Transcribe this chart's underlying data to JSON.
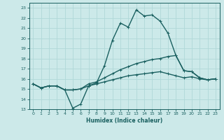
{
  "title": "",
  "xlabel": "Humidex (Indice chaleur)",
  "bg_color": "#cce9e9",
  "line_color": "#1a6060",
  "grid_color": "#b0d8d8",
  "xlim": [
    -0.5,
    23.5
  ],
  "ylim": [
    13,
    23.5
  ],
  "yticks": [
    13,
    14,
    15,
    16,
    17,
    18,
    19,
    20,
    21,
    22,
    23
  ],
  "xticks": [
    0,
    1,
    2,
    3,
    4,
    5,
    6,
    7,
    8,
    9,
    10,
    11,
    12,
    13,
    14,
    15,
    16,
    17,
    18,
    19,
    20,
    21,
    22,
    23
  ],
  "line1_x": [
    0,
    1,
    2,
    3,
    4,
    5,
    6,
    7,
    8,
    9,
    10,
    11,
    12,
    13,
    14,
    15,
    16,
    17,
    18,
    19,
    20,
    21,
    22,
    23
  ],
  "line1_y": [
    15.5,
    15.1,
    15.3,
    15.3,
    14.9,
    13.1,
    13.5,
    15.3,
    15.6,
    17.3,
    19.8,
    21.5,
    21.1,
    22.8,
    22.2,
    22.3,
    21.7,
    20.5,
    18.3,
    16.8,
    16.7,
    16.1,
    15.9,
    16.0
  ],
  "line2_x": [
    0,
    1,
    2,
    3,
    4,
    5,
    6,
    7,
    8,
    9,
    10,
    11,
    12,
    13,
    14,
    15,
    16,
    17,
    18,
    19,
    20,
    21,
    22,
    23
  ],
  "line2_y": [
    15.5,
    15.1,
    15.3,
    15.3,
    14.9,
    14.9,
    15.0,
    15.5,
    15.7,
    16.1,
    16.5,
    16.9,
    17.2,
    17.5,
    17.7,
    17.9,
    18.0,
    18.2,
    18.3,
    16.8,
    16.7,
    16.1,
    15.9,
    16.0
  ],
  "line3_x": [
    0,
    1,
    2,
    3,
    4,
    5,
    6,
    7,
    8,
    9,
    10,
    11,
    12,
    13,
    14,
    15,
    16,
    17,
    18,
    19,
    20,
    21,
    22,
    23
  ],
  "line3_y": [
    15.5,
    15.1,
    15.3,
    15.3,
    14.9,
    14.9,
    15.0,
    15.3,
    15.5,
    15.7,
    15.9,
    16.1,
    16.3,
    16.4,
    16.5,
    16.6,
    16.7,
    16.5,
    16.3,
    16.1,
    16.2,
    16.0,
    15.9,
    16.0
  ],
  "linewidth": 1.0,
  "markersize": 2.0
}
